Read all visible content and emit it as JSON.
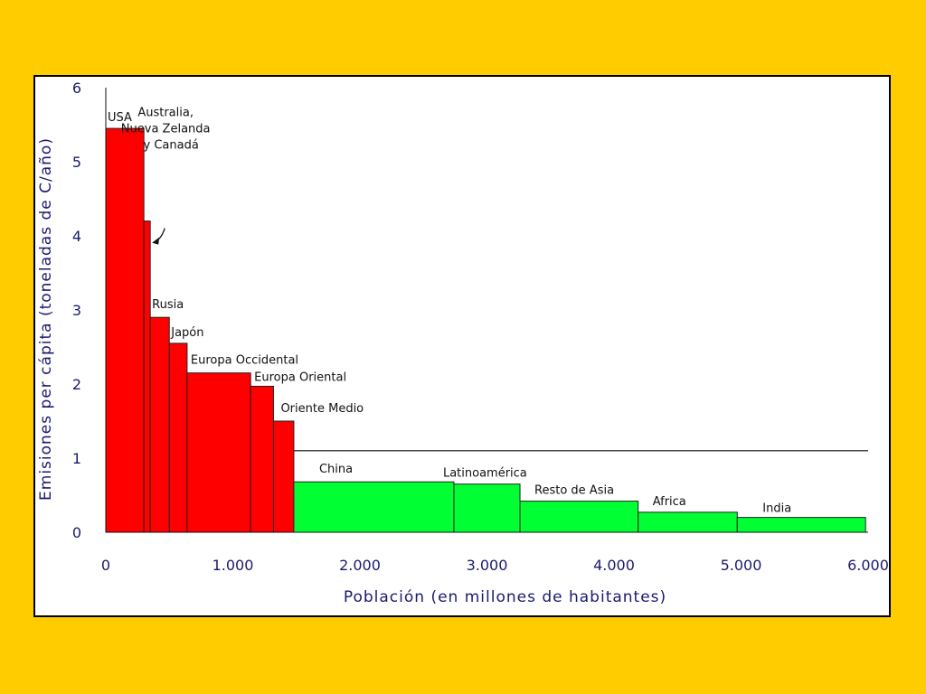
{
  "chart_data": {
    "type": "bar",
    "variant": "variable-width",
    "xlabel": "Población (en millones de habitantes)",
    "ylabel": "Emisiones per cápita (toneladas de C/año)",
    "xlim": [
      0,
      6000
    ],
    "ylim": [
      0,
      6
    ],
    "x_ticks": [
      "0",
      "1.000",
      "2.000",
      "3.000",
      "4.000",
      "5.000",
      "6.000"
    ],
    "y_ticks": [
      "0",
      "1",
      "2",
      "3",
      "4",
      "5",
      "6"
    ],
    "average_line": 1.1,
    "grid": false,
    "legend": "none",
    "regions": [
      {
        "label": "USA",
        "population": 300,
        "emissions": 5.45,
        "color": "#FF0000"
      },
      {
        "label": "Australia,\nNueva Zelanda\ny Canadá",
        "population": 50,
        "emissions": 4.2,
        "color": "#FF0000"
      },
      {
        "label": "Rusia",
        "population": 150,
        "emissions": 2.9,
        "color": "#FF0000"
      },
      {
        "label": "Japón",
        "population": 140,
        "emissions": 2.55,
        "color": "#FF0000"
      },
      {
        "label": "Europa Occidental",
        "population": 500,
        "emissions": 2.15,
        "color": "#FF0000"
      },
      {
        "label": "Europa Oriental",
        "population": 180,
        "emissions": 1.97,
        "color": "#FF0000"
      },
      {
        "label": "Oriente Medio",
        "population": 160,
        "emissions": 1.5,
        "color": "#FF0000"
      },
      {
        "label": "China",
        "population": 1260,
        "emissions": 0.68,
        "color": "#00FF33"
      },
      {
        "label": "Latinoamérica",
        "population": 520,
        "emissions": 0.65,
        "color": "#00FF33"
      },
      {
        "label": "Resto de Asia",
        "population": 930,
        "emissions": 0.42,
        "color": "#00FF33"
      },
      {
        "label": "Africa",
        "population": 780,
        "emissions": 0.27,
        "color": "#00FF33"
      },
      {
        "label": "India",
        "population": 1010,
        "emissions": 0.2,
        "color": "#00FF33"
      }
    ]
  }
}
